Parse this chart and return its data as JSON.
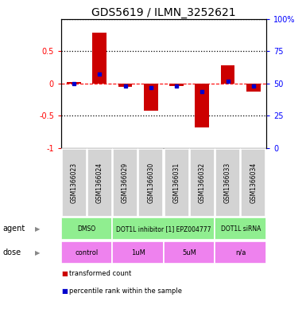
{
  "title": "GDS5619 / ILMN_3252621",
  "samples": [
    "GSM1366023",
    "GSM1366024",
    "GSM1366029",
    "GSM1366030",
    "GSM1366031",
    "GSM1366032",
    "GSM1366033",
    "GSM1366034"
  ],
  "bar_values": [
    0.02,
    0.78,
    -0.05,
    -0.42,
    -0.04,
    -0.68,
    0.28,
    -0.12
  ],
  "dot_percentile": [
    50,
    57,
    48,
    47,
    48,
    44,
    52,
    48
  ],
  "ylim": [
    -1,
    1
  ],
  "agent_groups": [
    {
      "label": "DMSO",
      "start": 0,
      "end": 2
    },
    {
      "label": "DOT1L inhibitor [1] EPZ004777",
      "start": 2,
      "end": 6
    },
    {
      "label": "DOT1L siRNA",
      "start": 6,
      "end": 8
    }
  ],
  "dose_groups": [
    {
      "label": "control",
      "start": 0,
      "end": 2
    },
    {
      "label": "1uM",
      "start": 2,
      "end": 4
    },
    {
      "label": "5uM",
      "start": 4,
      "end": 6
    },
    {
      "label": "n/a",
      "start": 6,
      "end": 8
    }
  ],
  "bar_color": "#cc0000",
  "dot_color": "#0000cc",
  "bg_color": "#ffffff",
  "sample_bg_color": "#d3d3d3",
  "agent_color": "#90ee90",
  "dose_color": "#ee82ee",
  "left_yticks": [
    -1,
    -0.5,
    0,
    0.5
  ],
  "left_yticklabels": [
    "-1",
    "-0.5",
    "0",
    "0.5"
  ],
  "right_yticks": [
    -1,
    -0.5,
    0,
    0.5,
    1
  ],
  "right_yticklabels": [
    "0",
    "25",
    "50",
    "75",
    "100%"
  ],
  "legend_items": [
    {
      "color": "#cc0000",
      "label": "transformed count"
    },
    {
      "color": "#0000cc",
      "label": "percentile rank within the sample"
    }
  ]
}
